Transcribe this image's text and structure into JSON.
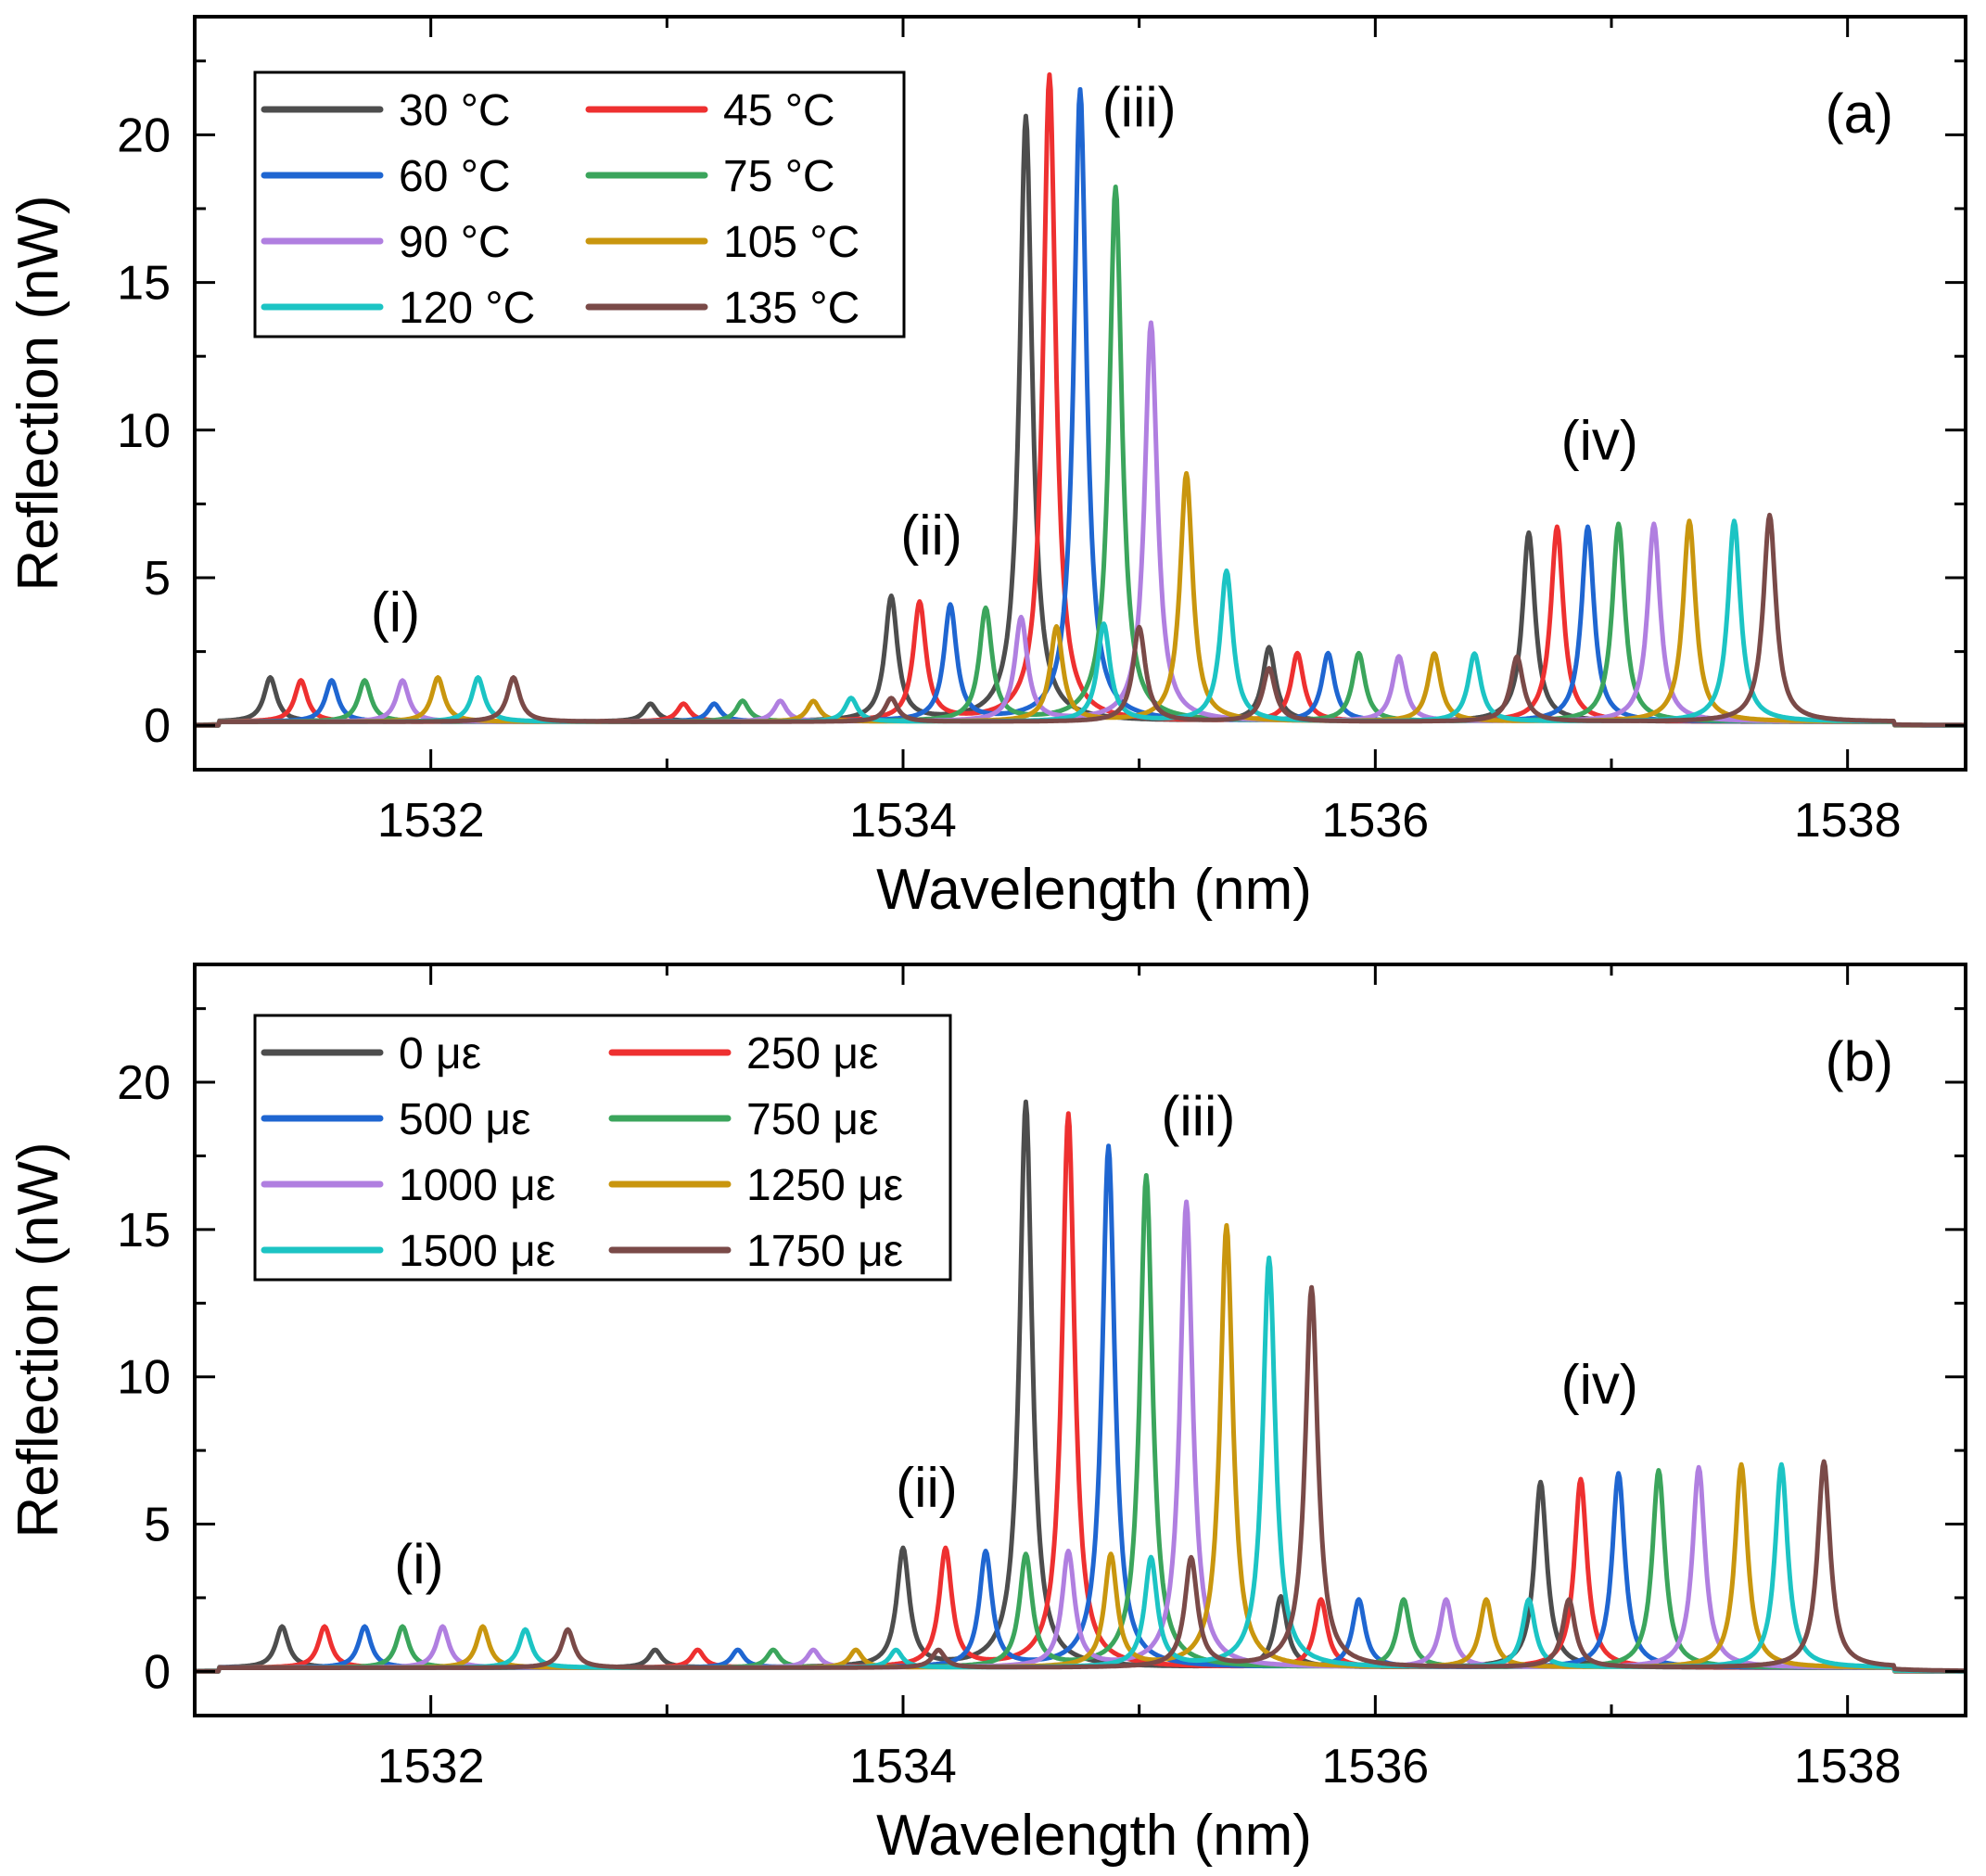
{
  "chart_data": [
    {
      "type": "line",
      "panel": "(a)",
      "xlabel": "Wavelength (nm)",
      "ylabel": "Reflection (nW)",
      "xlim": [
        1531,
        1538.5
      ],
      "ylim": [
        -1.5,
        24
      ],
      "xticks": [
        1532,
        1534,
        1536,
        1538
      ],
      "yticks": [
        0,
        5,
        10,
        15,
        20
      ],
      "grid": false,
      "legend_position": "top-left",
      "annotations": [
        {
          "text": "(i)",
          "x": 1531.85,
          "y": 3.2
        },
        {
          "text": "(ii)",
          "x": 1534.12,
          "y": 5.8
        },
        {
          "text": "(iii)",
          "x": 1535.0,
          "y": 20.3
        },
        {
          "text": "(iv)",
          "x": 1536.95,
          "y": 9.0
        }
      ],
      "series": [
        {
          "name": "30 °C",
          "color": "#4d4d4d",
          "peaks": [
            [
              1531.32,
              1.5
            ],
            [
              1532.93,
              0.6
            ],
            [
              1533.95,
              4.2
            ],
            [
              1534.52,
              20.5
            ],
            [
              1535.55,
              2.5
            ],
            [
              1536.65,
              6.4
            ]
          ]
        },
        {
          "name": "45 °C",
          "color": "#ee3030",
          "peaks": [
            [
              1531.45,
              1.4
            ],
            [
              1533.07,
              0.6
            ],
            [
              1534.07,
              4.0
            ],
            [
              1534.62,
              21.9
            ],
            [
              1535.67,
              2.3
            ],
            [
              1536.77,
              6.6
            ]
          ]
        },
        {
          "name": "60 °C",
          "color": "#1f66d1",
          "peaks": [
            [
              1531.58,
              1.4
            ],
            [
              1533.2,
              0.6
            ],
            [
              1534.2,
              3.9
            ],
            [
              1534.75,
              21.4
            ],
            [
              1535.8,
              2.3
            ],
            [
              1536.9,
              6.6
            ]
          ]
        },
        {
          "name": "75 °C",
          "color": "#3ba55c",
          "peaks": [
            [
              1531.72,
              1.4
            ],
            [
              1533.32,
              0.7
            ],
            [
              1534.35,
              3.8
            ],
            [
              1534.9,
              18.1
            ],
            [
              1535.93,
              2.3
            ],
            [
              1537.03,
              6.7
            ]
          ]
        },
        {
          "name": "90 °C",
          "color": "#b07fe0",
          "peaks": [
            [
              1531.88,
              1.4
            ],
            [
              1533.48,
              0.7
            ],
            [
              1534.5,
              3.5
            ],
            [
              1535.05,
              13.5
            ],
            [
              1536.1,
              2.2
            ],
            [
              1537.18,
              6.7
            ]
          ]
        },
        {
          "name": "105 °C",
          "color": "#c9960e",
          "peaks": [
            [
              1532.03,
              1.5
            ],
            [
              1533.62,
              0.7
            ],
            [
              1534.65,
              3.2
            ],
            [
              1535.2,
              8.4
            ],
            [
              1536.25,
              2.3
            ],
            [
              1537.33,
              6.8
            ]
          ]
        },
        {
          "name": "120 °C",
          "color": "#1cc4c4",
          "peaks": [
            [
              1532.2,
              1.5
            ],
            [
              1533.78,
              0.8
            ],
            [
              1534.85,
              3.3
            ],
            [
              1535.37,
              5.1
            ],
            [
              1536.42,
              2.3
            ],
            [
              1537.52,
              6.8
            ]
          ]
        },
        {
          "name": "135 °C",
          "color": "#7a4a48",
          "peaks": [
            [
              1532.35,
              1.5
            ],
            [
              1533.95,
              0.8
            ],
            [
              1535.0,
              3.2
            ],
            [
              1535.55,
              1.8
            ],
            [
              1536.6,
              2.2
            ],
            [
              1537.67,
              7.0
            ]
          ]
        }
      ]
    },
    {
      "type": "line",
      "panel": "(b)",
      "xlabel": "Wavelength (nm)",
      "ylabel": "Reflection (nW)",
      "xlim": [
        1531,
        1538.5
      ],
      "ylim": [
        -1.5,
        24
      ],
      "xticks": [
        1532,
        1534,
        1536,
        1538
      ],
      "yticks": [
        0,
        5,
        10,
        15,
        20
      ],
      "grid": false,
      "legend_position": "top-left",
      "annotations": [
        {
          "text": "(i)",
          "x": 1531.95,
          "y": 3.0
        },
        {
          "text": "(ii)",
          "x": 1534.1,
          "y": 5.6
        },
        {
          "text": "(iii)",
          "x": 1535.25,
          "y": 18.2
        },
        {
          "text": "(iv)",
          "x": 1536.95,
          "y": 9.1
        }
      ],
      "series": [
        {
          "name": "0 με",
          "color": "#4d4d4d",
          "peaks": [
            [
              1531.37,
              1.4
            ],
            [
              1532.95,
              0.6
            ],
            [
              1534.0,
              4.0
            ],
            [
              1534.52,
              19.2
            ],
            [
              1535.6,
              2.4
            ],
            [
              1536.7,
              6.3
            ]
          ]
        },
        {
          "name": "250 με",
          "color": "#ee3030",
          "peaks": [
            [
              1531.55,
              1.4
            ],
            [
              1533.13,
              0.6
            ],
            [
              1534.18,
              4.0
            ],
            [
              1534.7,
              18.8
            ],
            [
              1535.77,
              2.3
            ],
            [
              1536.87,
              6.4
            ]
          ]
        },
        {
          "name": "500 με",
          "color": "#1f66d1",
          "peaks": [
            [
              1531.72,
              1.4
            ],
            [
              1533.3,
              0.6
            ],
            [
              1534.35,
              3.9
            ],
            [
              1534.87,
              17.7
            ],
            [
              1535.93,
              2.3
            ],
            [
              1537.03,
              6.6
            ]
          ]
        },
        {
          "name": "750 με",
          "color": "#3ba55c",
          "peaks": [
            [
              1531.88,
              1.4
            ],
            [
              1533.45,
              0.6
            ],
            [
              1534.52,
              3.8
            ],
            [
              1535.03,
              16.7
            ],
            [
              1536.12,
              2.3
            ],
            [
              1537.2,
              6.7
            ]
          ]
        },
        {
          "name": "1000 με",
          "color": "#b07fe0",
          "peaks": [
            [
              1532.05,
              1.4
            ],
            [
              1533.62,
              0.6
            ],
            [
              1534.7,
              3.9
            ],
            [
              1535.2,
              15.8
            ],
            [
              1536.3,
              2.3
            ],
            [
              1537.37,
              6.8
            ]
          ]
        },
        {
          "name": "1250 με",
          "color": "#c9960e",
          "peaks": [
            [
              1532.22,
              1.4
            ],
            [
              1533.8,
              0.6
            ],
            [
              1534.88,
              3.8
            ],
            [
              1535.37,
              15.0
            ],
            [
              1536.47,
              2.3
            ],
            [
              1537.55,
              6.9
            ]
          ]
        },
        {
          "name": "1500 με",
          "color": "#1cc4c4",
          "peaks": [
            [
              1532.4,
              1.3
            ],
            [
              1533.97,
              0.6
            ],
            [
              1535.05,
              3.7
            ],
            [
              1535.55,
              13.9
            ],
            [
              1536.65,
              2.3
            ],
            [
              1537.72,
              6.9
            ]
          ]
        },
        {
          "name": "1750 με",
          "color": "#7a4a48",
          "peaks": [
            [
              1532.58,
              1.3
            ],
            [
              1534.15,
              0.6
            ],
            [
              1535.22,
              3.7
            ],
            [
              1535.73,
              12.9
            ],
            [
              1536.82,
              2.3
            ],
            [
              1537.9,
              7.0
            ]
          ]
        }
      ]
    }
  ]
}
